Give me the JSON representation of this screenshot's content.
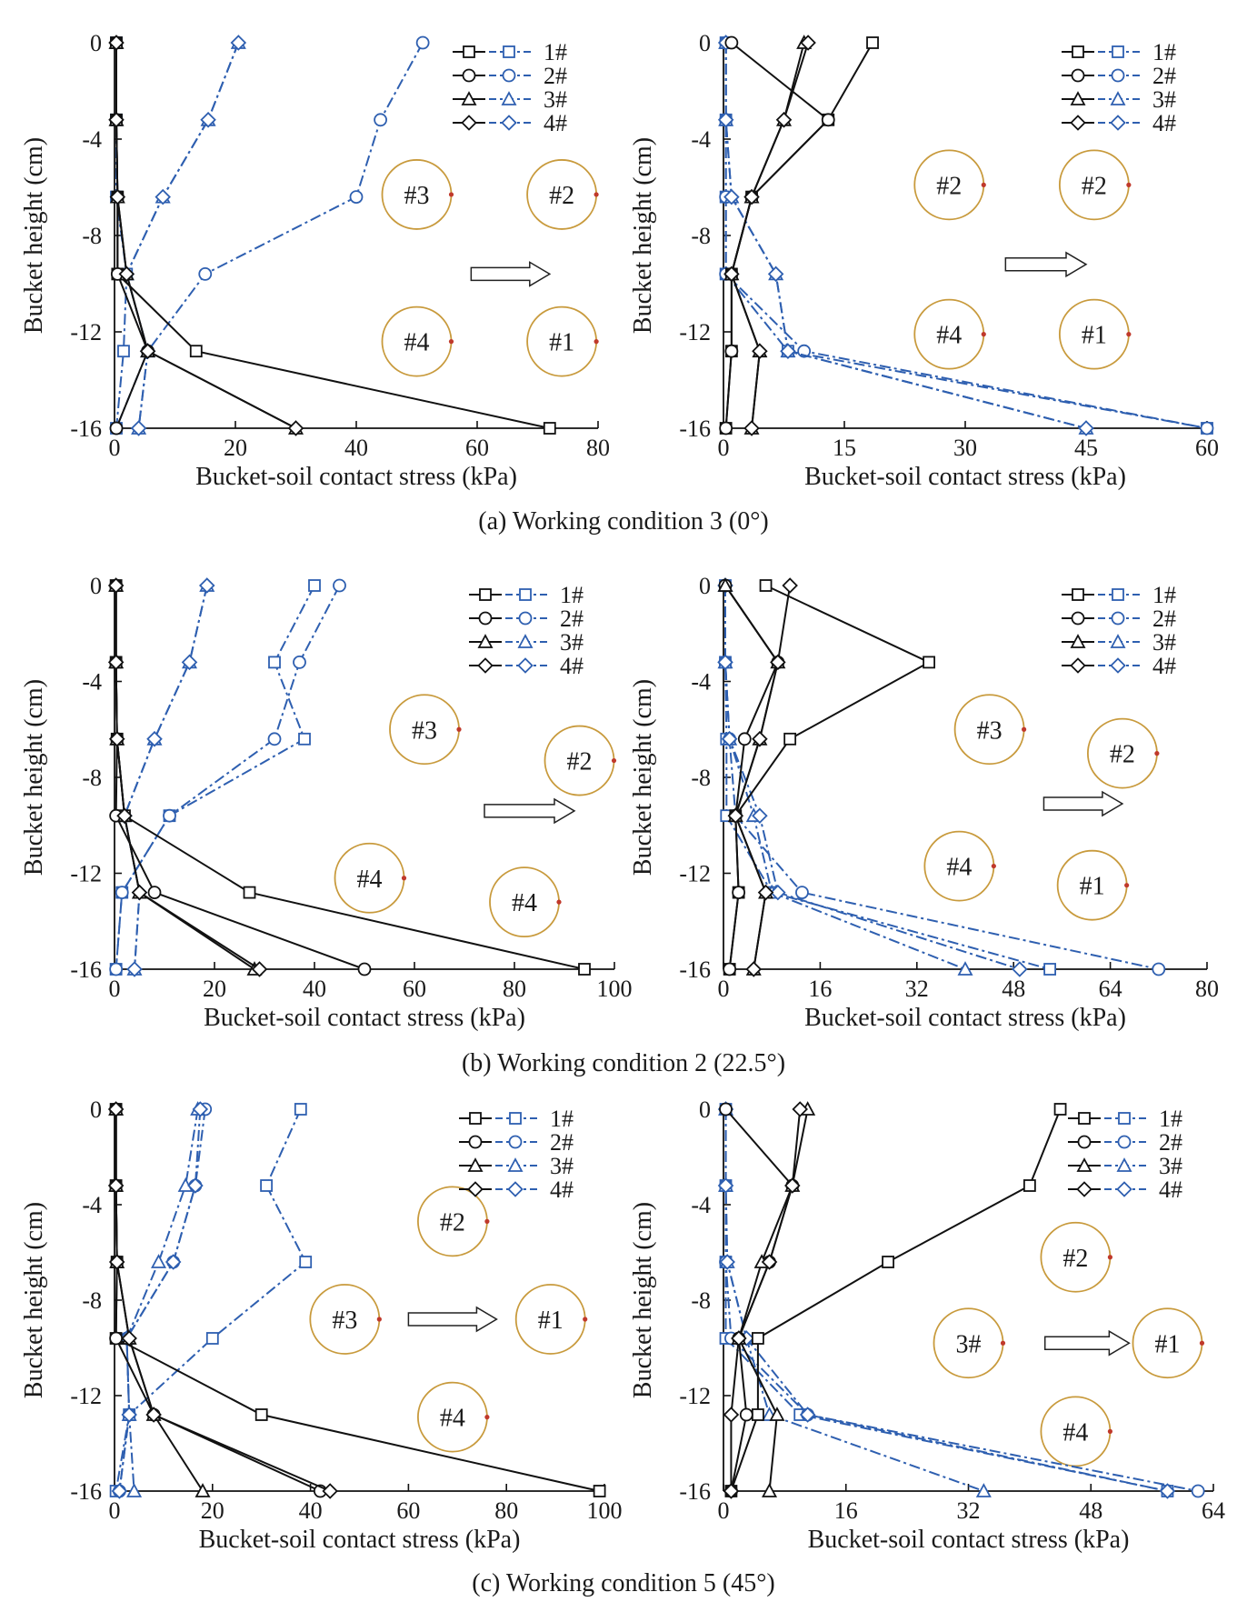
{
  "figure": {
    "row_captions": [
      "(a) Working condition 3 (0°)",
      "(b) Working condition 2 (22.5°)",
      "(c) Working condition 5 (45°)"
    ],
    "legend_labels": [
      "1#",
      "2#",
      "3#",
      "4#"
    ],
    "colors": {
      "front": "#111111",
      "back": "#2e5fb0",
      "ring": "#c89a3c",
      "dot": "#c0392b"
    }
  },
  "chart_data": [
    {
      "type": "line",
      "id": "a-left",
      "xlabel": "Bucket-soil contact stress (kPa)",
      "ylabel": "Bucket height (cm)",
      "xlim": [
        0,
        80
      ],
      "ylim": [
        -16,
        0
      ],
      "xticks": [
        0,
        20,
        40,
        60,
        80
      ],
      "yticks": [
        0,
        -4,
        -8,
        -12,
        -16
      ],
      "y": [
        0,
        -3.2,
        -6.4,
        -9.6,
        -12.8,
        -16
      ],
      "series": [
        {
          "name": "1#",
          "marker": "square",
          "front": [
            0.3,
            0.3,
            0.5,
            0.5,
            13.5,
            72.0
          ],
          "back": [
            0.3,
            0.3,
            0.3,
            2.0,
            1.5,
            0.3
          ]
        },
        {
          "name": "2#",
          "marker": "circle",
          "front": [
            0.3,
            0.3,
            0.5,
            0.5,
            5.5,
            0.3
          ],
          "back": [
            51.0,
            44.0,
            40.0,
            15.0,
            5.5,
            0.3
          ]
        },
        {
          "name": "3#",
          "marker": "triangle",
          "front": [
            0.3,
            0.3,
            0.5,
            2.0,
            5.5,
            30.0
          ],
          "back": [
            20.5,
            15.5,
            8.0,
            2.0,
            5.5,
            4.0
          ]
        },
        {
          "name": "4#",
          "marker": "diamond",
          "front": [
            0.3,
            0.3,
            0.5,
            2.0,
            5.5,
            30.0
          ],
          "back": [
            20.5,
            15.5,
            8.0,
            2.0,
            5.5,
            4.0
          ]
        }
      ],
      "buckets": [
        {
          "label": "#3",
          "x": 50,
          "y": -6.3
        },
        {
          "label": "#2",
          "x": 74,
          "y": -6.3
        },
        {
          "label": "#4",
          "x": 50,
          "y": -12.4
        },
        {
          "label": "#1",
          "x": 74,
          "y": -12.4
        }
      ],
      "arrow": {
        "x1": 59,
        "x2": 72,
        "y": -9.6
      }
    },
    {
      "type": "line",
      "id": "a-right",
      "xlabel": "Bucket-soil contact stress (kPa)",
      "ylabel": "Bucket height (cm)",
      "xlim": [
        0,
        60
      ],
      "ylim": [
        -16,
        0
      ],
      "xticks": [
        0,
        15,
        30,
        45,
        60
      ],
      "yticks": [
        0,
        -4,
        -8,
        -12,
        -16
      ],
      "y": [
        0,
        -3.2,
        -6.4,
        -9.6,
        -12.8,
        -16
      ],
      "series": [
        {
          "name": "1#",
          "marker": "square",
          "front": [
            18.5,
            13.0,
            3.5,
            1.0,
            1.0,
            0.3
          ],
          "back": [
            0.3,
            0.3,
            0.3,
            0.3,
            8.0,
            60.0
          ]
        },
        {
          "name": "2#",
          "marker": "circle",
          "front": [
            1.0,
            13.0,
            3.5,
            1.0,
            1.0,
            0.3
          ],
          "back": [
            0.3,
            0.3,
            0.3,
            0.3,
            10.0,
            60.0
          ]
        },
        {
          "name": "3#",
          "marker": "triangle",
          "front": [
            10.0,
            7.5,
            3.5,
            1.0,
            4.5,
            3.5
          ],
          "back": [
            0.3,
            0.3,
            1.0,
            6.5,
            8.0,
            45.0
          ]
        },
        {
          "name": "4#",
          "marker": "diamond",
          "front": [
            10.5,
            7.5,
            3.5,
            1.0,
            4.5,
            3.5
          ],
          "back": [
            0.3,
            0.3,
            1.0,
            6.5,
            8.0,
            45.0
          ]
        }
      ],
      "buckets": [
        {
          "label": "#2",
          "x": 28,
          "y": -5.9
        },
        {
          "label": "#2",
          "x": 46,
          "y": -5.9
        },
        {
          "label": "#4",
          "x": 28,
          "y": -12.1
        },
        {
          "label": "#1",
          "x": 46,
          "y": -12.1
        }
      ],
      "arrow": {
        "x1": 35,
        "x2": 45,
        "y": -9.2
      }
    },
    {
      "type": "line",
      "id": "b-left",
      "xlabel": "Bucket-soil contact stress (kPa)",
      "ylabel": "Bucket height (cm)",
      "xlim": [
        0,
        100
      ],
      "ylim": [
        -16,
        0
      ],
      "xticks": [
        0,
        20,
        40,
        60,
        80,
        100
      ],
      "yticks": [
        0,
        -4,
        -8,
        -12,
        -16
      ],
      "y": [
        0,
        -3.2,
        -6.4,
        -9.6,
        -12.8,
        -16
      ],
      "series": [
        {
          "name": "1#",
          "marker": "square",
          "front": [
            0.3,
            0.3,
            0.5,
            2.0,
            27.0,
            94.0
          ],
          "back": [
            40.0,
            32.0,
            38.0,
            11.0,
            1.5,
            0.3
          ]
        },
        {
          "name": "2#",
          "marker": "circle",
          "front": [
            0.3,
            0.3,
            0.5,
            0.3,
            8.0,
            50.0
          ],
          "back": [
            45.0,
            37.0,
            32.0,
            11.0,
            1.5,
            0.3
          ]
        },
        {
          "name": "3#",
          "marker": "triangle",
          "front": [
            0.3,
            0.3,
            0.5,
            2.0,
            5.0,
            28.0
          ],
          "back": [
            18.5,
            15.0,
            8.0,
            2.0,
            5.0,
            4.0
          ]
        },
        {
          "name": "4#",
          "marker": "diamond",
          "front": [
            0.3,
            0.3,
            0.5,
            2.0,
            5.0,
            29.0
          ],
          "back": [
            18.5,
            15.0,
            8.0,
            2.0,
            5.0,
            4.0
          ]
        }
      ],
      "buckets": [
        {
          "label": "#3",
          "x": 62,
          "y": -6.0
        },
        {
          "label": "#2",
          "x": 93,
          "y": -7.3
        },
        {
          "label": "#4",
          "x": 51,
          "y": -12.2
        },
        {
          "label": "#4",
          "x": 82,
          "y": -13.2
        }
      ],
      "arrow": {
        "x1": 74,
        "x2": 92,
        "y": -9.4
      }
    },
    {
      "type": "line",
      "id": "b-right",
      "xlabel": "Bucket-soil contact stress (kPa)",
      "ylabel": "Bucket height (cm)",
      "xlim": [
        0,
        80
      ],
      "ylim": [
        -16,
        0
      ],
      "xticks": [
        0,
        16,
        32,
        48,
        64,
        80
      ],
      "yticks": [
        0,
        -4,
        -8,
        -12,
        -16
      ],
      "y": [
        0,
        -3.2,
        -6.4,
        -9.6,
        -12.8,
        -16
      ],
      "series": [
        {
          "name": "1#",
          "marker": "square",
          "front": [
            7.0,
            34.0,
            11.0,
            2.0,
            2.5,
            1.0
          ],
          "back": [
            0.3,
            0.3,
            0.5,
            0.5,
            8.0,
            54.0
          ]
        },
        {
          "name": "2#",
          "marker": "circle",
          "front": [
            0.3,
            9.0,
            3.5,
            2.0,
            2.5,
            1.0
          ],
          "back": [
            0.3,
            0.3,
            1.0,
            2.0,
            13.0,
            72.0
          ]
        },
        {
          "name": "3#",
          "marker": "triangle",
          "front": [
            0.3,
            9.0,
            6.0,
            2.0,
            7.0,
            5.0
          ],
          "back": [
            0.3,
            0.3,
            1.0,
            5.0,
            8.0,
            40.0
          ]
        },
        {
          "name": "4#",
          "marker": "diamond",
          "front": [
            11.0,
            9.0,
            6.0,
            2.0,
            7.0,
            5.0
          ],
          "back": [
            0.3,
            0.3,
            1.0,
            6.0,
            9.0,
            49.0
          ]
        }
      ],
      "buckets": [
        {
          "label": "#3",
          "x": 44,
          "y": -6.0
        },
        {
          "label": "#2",
          "x": 66,
          "y": -7.0
        },
        {
          "label": "#4",
          "x": 39,
          "y": -11.7
        },
        {
          "label": "#1",
          "x": 61,
          "y": -12.5
        }
      ],
      "arrow": {
        "x1": 53,
        "x2": 66,
        "y": -9.1
      }
    },
    {
      "type": "line",
      "id": "c-left",
      "xlabel": "Bucket-soil contact stress (kPa)",
      "ylabel": "Bucket height (cm)",
      "xlim": [
        0,
        100
      ],
      "ylim": [
        -16,
        0
      ],
      "xticks": [
        0,
        20,
        40,
        60,
        80,
        100
      ],
      "yticks": [
        0,
        -4,
        -8,
        -12,
        -16
      ],
      "y": [
        0,
        -3.2,
        -6.4,
        -9.6,
        -12.8,
        -16
      ],
      "series": [
        {
          "name": "1#",
          "marker": "square",
          "front": [
            0.3,
            0.3,
            0.5,
            0.3,
            30.0,
            99.0
          ],
          "back": [
            38.0,
            31.0,
            39.0,
            20.0,
            3.0,
            0.3
          ]
        },
        {
          "name": "2#",
          "marker": "circle",
          "front": [
            0.3,
            0.3,
            0.5,
            0.3,
            8.0,
            42.0
          ],
          "back": [
            18.5,
            16.5,
            12.0,
            2.5,
            3.0,
            1.0
          ]
        },
        {
          "name": "3#",
          "marker": "triangle",
          "front": [
            0.3,
            0.3,
            0.5,
            3.0,
            8.0,
            18.0
          ],
          "back": [
            17.0,
            14.5,
            9.0,
            2.5,
            3.0,
            4.0
          ]
        },
        {
          "name": "4#",
          "marker": "diamond",
          "front": [
            0.3,
            0.3,
            0.5,
            3.0,
            8.0,
            44.0
          ],
          "back": [
            17.5,
            16.5,
            12.0,
            2.5,
            3.0,
            1.0
          ]
        }
      ],
      "buckets": [
        {
          "label": "#2",
          "x": 69,
          "y": -4.7
        },
        {
          "label": "#3",
          "x": 47,
          "y": -8.8
        },
        {
          "label": "#1",
          "x": 89,
          "y": -8.8
        },
        {
          "label": "#4",
          "x": 69,
          "y": -12.9
        }
      ],
      "arrow": {
        "x1": 60,
        "x2": 78,
        "y": -8.8
      }
    },
    {
      "type": "line",
      "id": "c-right",
      "xlabel": "Bucket-soil contact stress (kPa)",
      "ylabel": "Bucket height (cm)",
      "xlim": [
        0,
        64
      ],
      "ylim": [
        -16,
        0
      ],
      "xticks": [
        0,
        16,
        32,
        48,
        64
      ],
      "yticks": [
        0,
        -4,
        -8,
        -12,
        -16
      ],
      "y": [
        0,
        -3.2,
        -6.4,
        -9.6,
        -12.8,
        -16
      ],
      "series": [
        {
          "name": "1#",
          "marker": "square",
          "front": [
            44.0,
            40.0,
            21.5,
            4.5,
            4.5,
            1.0
          ],
          "back": [
            0.3,
            0.3,
            0.3,
            0.3,
            10.0,
            58.0
          ]
        },
        {
          "name": "2#",
          "marker": "circle",
          "front": [
            0.3,
            9.0,
            6.0,
            2.0,
            3.0,
            1.0
          ],
          "back": [
            0.3,
            0.3,
            0.3,
            1.0,
            11.0,
            62.0
          ]
        },
        {
          "name": "3#",
          "marker": "triangle",
          "front": [
            11.0,
            9.0,
            5.0,
            2.0,
            7.0,
            6.0
          ],
          "back": [
            0.3,
            0.3,
            0.5,
            3.0,
            6.0,
            34.0
          ]
        },
        {
          "name": "4#",
          "marker": "diamond",
          "front": [
            10.0,
            9.0,
            6.0,
            2.0,
            1.0,
            1.0
          ],
          "back": [
            0.3,
            0.3,
            0.5,
            3.0,
            11.0,
            58.0
          ]
        }
      ],
      "buckets": [
        {
          "label": "#2",
          "x": 46,
          "y": -6.2
        },
        {
          "label": "3#",
          "x": 32,
          "y": -9.8
        },
        {
          "label": "#1",
          "x": 58,
          "y": -9.8
        },
        {
          "label": "#4",
          "x": 46,
          "y": -13.5
        }
      ],
      "arrow": {
        "x1": 42,
        "x2": 53,
        "y": -9.8
      }
    }
  ]
}
